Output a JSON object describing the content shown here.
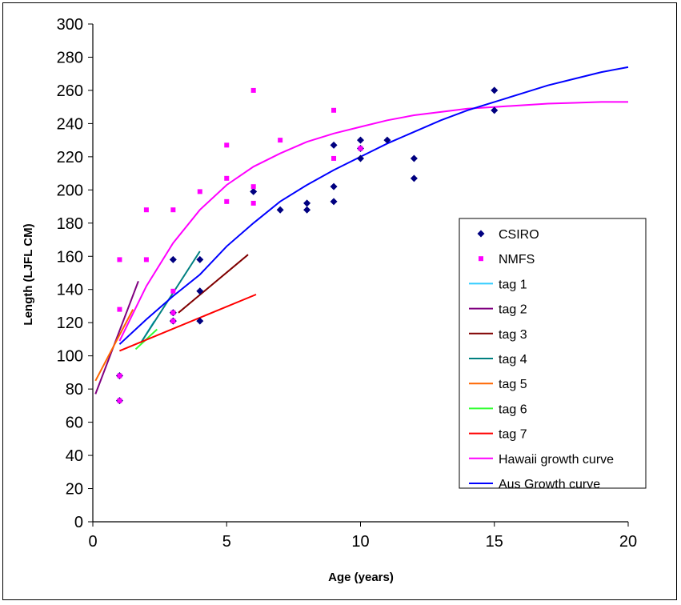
{
  "chart_data": {
    "type": "scatter",
    "title": "",
    "xlabel": "Age (years)",
    "ylabel": "Length (LJFL CM)",
    "xlim": [
      0,
      20
    ],
    "ylim": [
      0,
      300
    ],
    "xticks": [
      0,
      5,
      10,
      15,
      20
    ],
    "yticks": [
      0,
      20,
      40,
      60,
      80,
      100,
      120,
      140,
      160,
      180,
      200,
      220,
      240,
      260,
      280,
      300
    ],
    "grid": false,
    "legend_position": "right",
    "series": [
      {
        "name": "CSIRO",
        "kind": "scatter",
        "marker": "diamond",
        "color": "#000080",
        "points": [
          [
            1,
            73
          ],
          [
            1,
            88
          ],
          [
            3,
            158
          ],
          [
            3,
            126
          ],
          [
            3,
            121
          ],
          [
            4,
            158
          ],
          [
            4,
            139
          ],
          [
            4,
            121
          ],
          [
            6,
            199
          ],
          [
            7,
            188
          ],
          [
            8,
            192
          ],
          [
            8,
            188
          ],
          [
            9,
            227
          ],
          [
            9,
            202
          ],
          [
            9,
            193
          ],
          [
            10,
            230
          ],
          [
            10,
            225
          ],
          [
            10,
            219
          ],
          [
            11,
            230
          ],
          [
            12,
            219
          ],
          [
            12,
            207
          ],
          [
            15,
            260
          ],
          [
            15,
            248
          ]
        ]
      },
      {
        "name": "NMFS",
        "kind": "scatter",
        "marker": "square",
        "color": "#FF00FF",
        "points": [
          [
            1,
            158
          ],
          [
            1,
            128
          ],
          [
            1,
            88
          ],
          [
            1,
            73
          ],
          [
            2,
            188
          ],
          [
            2,
            158
          ],
          [
            3,
            188
          ],
          [
            3,
            139
          ],
          [
            3,
            126
          ],
          [
            3,
            121
          ],
          [
            4,
            199
          ],
          [
            5,
            227
          ],
          [
            5,
            207
          ],
          [
            5,
            193
          ],
          [
            6,
            260
          ],
          [
            6,
            202
          ],
          [
            6,
            192
          ],
          [
            7,
            230
          ],
          [
            9,
            248
          ],
          [
            9,
            219
          ],
          [
            10,
            225
          ]
        ]
      },
      {
        "name": "tag 1",
        "kind": "line",
        "color": "#33CCFF",
        "points": [
          [
            1.8,
            108
          ],
          [
            2.3,
            121
          ]
        ]
      },
      {
        "name": "tag 2",
        "kind": "line",
        "color": "#800080",
        "points": [
          [
            0.1,
            77
          ],
          [
            1.7,
            145
          ]
        ]
      },
      {
        "name": "tag 3",
        "kind": "line",
        "color": "#800000",
        "points": [
          [
            3.2,
            126
          ],
          [
            5.8,
            161
          ]
        ]
      },
      {
        "name": "tag 4",
        "kind": "line",
        "color": "#008080",
        "points": [
          [
            1.8,
            108
          ],
          [
            4.0,
            163
          ]
        ]
      },
      {
        "name": "tag 5",
        "kind": "line",
        "color": "#FF6600",
        "points": [
          [
            0.1,
            85
          ],
          [
            1.5,
            128
          ]
        ]
      },
      {
        "name": "tag 6",
        "kind": "line",
        "color": "#33FF33",
        "points": [
          [
            1.6,
            104
          ],
          [
            2.4,
            116
          ]
        ]
      },
      {
        "name": "tag 7",
        "kind": "line",
        "color": "#FF0000",
        "points": [
          [
            1,
            103
          ],
          [
            6.1,
            137
          ]
        ]
      },
      {
        "name": "Hawaii growth curve",
        "kind": "line",
        "color": "#FF00FF",
        "points": [
          [
            1,
            109
          ],
          [
            2,
            142
          ],
          [
            3,
            168
          ],
          [
            4,
            188
          ],
          [
            5,
            203
          ],
          [
            6,
            214
          ],
          [
            7,
            222
          ],
          [
            8,
            229
          ],
          [
            9,
            234
          ],
          [
            10,
            238
          ],
          [
            11,
            242
          ],
          [
            12,
            245
          ],
          [
            13,
            247
          ],
          [
            14,
            249
          ],
          [
            15,
            250
          ],
          [
            16,
            251
          ],
          [
            17,
            252
          ],
          [
            18,
            252.5
          ],
          [
            19,
            253
          ],
          [
            20,
            253
          ]
        ]
      },
      {
        "name": "Aus Growth curve",
        "kind": "line",
        "color": "#0000FF",
        "points": [
          [
            1,
            107
          ],
          [
            2,
            122
          ],
          [
            3,
            136
          ],
          [
            4,
            149
          ],
          [
            5,
            166
          ],
          [
            6,
            180
          ],
          [
            7,
            193
          ],
          [
            8,
            203
          ],
          [
            9,
            212
          ],
          [
            10,
            220
          ],
          [
            11,
            228
          ],
          [
            12,
            235
          ],
          [
            13,
            242
          ],
          [
            14,
            248
          ],
          [
            15,
            253
          ],
          [
            16,
            258
          ],
          [
            17,
            263
          ],
          [
            18,
            267
          ],
          [
            19,
            271
          ],
          [
            20,
            274
          ]
        ]
      }
    ]
  }
}
